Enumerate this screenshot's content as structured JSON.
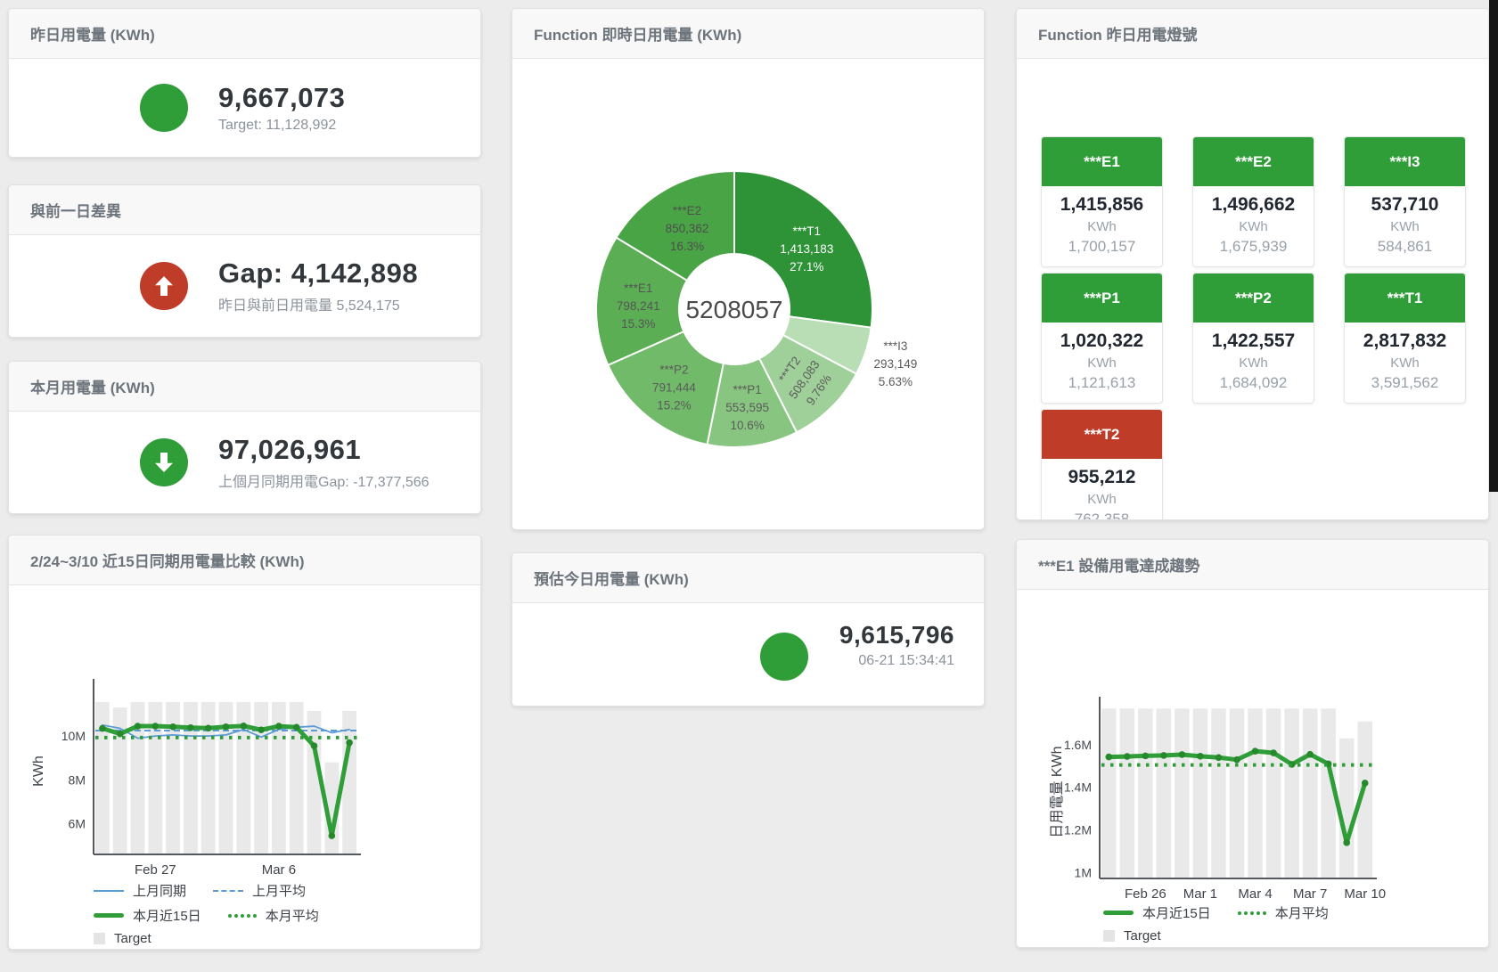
{
  "colors": {
    "green": "#2f9e38",
    "red": "#bf3c28",
    "blue": "#5b9cd6",
    "target_bar": "#e9e9e9",
    "axis": "#55595e",
    "marker_green": "#268a2c"
  },
  "cards": {
    "yesterday": {
      "title": "昨日用電量 (KWh)",
      "value": "9,667,073",
      "subtitle": "Target: 11,128,992",
      "indicator": "circle",
      "indicator_color": "#2f9e38"
    },
    "gap": {
      "title": "與前一日差異",
      "value": "Gap: 4,142,898",
      "subtitle": "昨日與前日用電量 5,524,175",
      "indicator": "arrow-up",
      "indicator_color": "#bf3c28"
    },
    "month": {
      "title": "本月用電量 (KWh)",
      "value": "97,026,961",
      "subtitle": "上個月同期用電Gap: -17,377,566",
      "indicator": "arrow-down",
      "indicator_color": "#2f9e38"
    },
    "estimate": {
      "title": "預估今日用電量 (KWh)",
      "value": "9,615,796",
      "subtitle": "06-21 15:34:41",
      "indicator": "circle",
      "indicator_color": "#2f9e38"
    }
  },
  "lights_card": {
    "title": "Function 昨日用電燈號",
    "tiles": [
      {
        "name": "***E1",
        "value": "1,415,856",
        "unit": "KWh",
        "sub": "1,700,157",
        "status": "green"
      },
      {
        "name": "***E2",
        "value": "1,496,662",
        "unit": "KWh",
        "sub": "1,675,939",
        "status": "green"
      },
      {
        "name": "***I3",
        "value": "537,710",
        "unit": "KWh",
        "sub": "584,861",
        "status": "green"
      },
      {
        "name": "***P1",
        "value": "1,020,322",
        "unit": "KWh",
        "sub": "1,121,613",
        "status": "green"
      },
      {
        "name": "***P2",
        "value": "1,422,557",
        "unit": "KWh",
        "sub": "1,684,092",
        "status": "green"
      },
      {
        "name": "***T1",
        "value": "2,817,832",
        "unit": "KWh",
        "sub": "3,591,562",
        "status": "green"
      },
      {
        "name": "***T2",
        "value": "955,212",
        "unit": "KWh",
        "sub": "762,358",
        "status": "red"
      }
    ]
  },
  "chart_data": [
    {
      "id": "realtime_donut",
      "type": "pie",
      "title": "Function 即時日用電量 (KWh)",
      "center_total": "5208057",
      "slices": [
        {
          "name": "***T1",
          "value": 1413183,
          "value_label": "1,413,183",
          "pct": 27.1,
          "pct_label": "27.1%",
          "color": "#2d9336",
          "label_color": "#ffffff"
        },
        {
          "name": "***I3",
          "value": 293149,
          "value_label": "293,149",
          "pct": 5.63,
          "pct_label": "5.63%",
          "color": "#b9ddb4",
          "label_color": "#5b5b5b",
          "label_outside": true
        },
        {
          "name": "***T2",
          "value": 508083,
          "value_label": "508,083",
          "pct": 9.76,
          "pct_label": "9.76%",
          "color": "#a0d09a",
          "label_color": "#5b5b5b",
          "label_rotate": -55
        },
        {
          "name": "***P1",
          "value": 553595,
          "value_label": "553,595",
          "pct": 10.6,
          "pct_label": "10.6%",
          "color": "#88c580",
          "label_color": "#5b5b5b"
        },
        {
          "name": "***P2",
          "value": 791444,
          "value_label": "791,444",
          "pct": 15.2,
          "pct_label": "15.2%",
          "color": "#71ba69",
          "label_color": "#5b5b5b"
        },
        {
          "name": "***E1",
          "value": 798241,
          "value_label": "798,241",
          "pct": 15.3,
          "pct_label": "15.3%",
          "color": "#5cae55",
          "label_color": "#555555"
        },
        {
          "name": "***E2",
          "value": 850362,
          "value_label": "850,362",
          "pct": 16.3,
          "pct_label": "16.3%",
          "color": "#49a445",
          "label_color": "#4f4f4f"
        }
      ]
    },
    {
      "id": "compare15",
      "type": "line",
      "title": "2/24~3/10 近15日同期用電量比較 (KWh)",
      "ylabel": "KWh",
      "unit": "M KWh",
      "ylim": [
        4.6,
        12.2
      ],
      "yticks": [
        {
          "v": 6,
          "label": "6M"
        },
        {
          "v": 8,
          "label": "8M"
        },
        {
          "v": 10,
          "label": "10M"
        }
      ],
      "xticks": [
        {
          "i": 3,
          "label": "Feb 27"
        },
        {
          "i": 10,
          "label": "Mar 6"
        }
      ],
      "categories": [
        "2/24",
        "2/25",
        "2/26",
        "2/27",
        "2/28",
        "3/1",
        "3/2",
        "3/3",
        "3/4",
        "3/5",
        "3/6",
        "3/7",
        "3/8",
        "3/9",
        "3/10"
      ],
      "target_name": "Target",
      "target_m": [
        11.55,
        11.3,
        11.55,
        11.55,
        11.55,
        11.55,
        11.55,
        11.55,
        11.55,
        11.55,
        11.55,
        11.55,
        11.15,
        8.8,
        11.15
      ],
      "series": [
        {
          "name": "上月同期",
          "style": "line",
          "color": "#5b9cd6",
          "width": 1.8,
          "values_m": [
            10.5,
            10.35,
            9.9,
            10.0,
            10.05,
            10.0,
            10.0,
            10.05,
            10.3,
            9.95,
            10.3,
            10.4,
            10.45,
            10.15,
            10.3
          ]
        },
        {
          "name": "上月平均",
          "style": "dash",
          "color": "#5b9cd6",
          "width": 2,
          "constant_m": 10.25
        },
        {
          "name": "本月近15日",
          "style": "thick",
          "color": "#2f9e38",
          "width": 5,
          "markers": true,
          "values_m": [
            10.35,
            10.1,
            10.45,
            10.45,
            10.42,
            10.38,
            10.36,
            10.42,
            10.46,
            10.28,
            10.45,
            10.4,
            9.55,
            5.45,
            9.7
          ]
        },
        {
          "name": "本月平均",
          "style": "dot",
          "color": "#2f9e38",
          "width": 4,
          "constant_m": 9.93
        }
      ],
      "legend_rows": [
        [
          "上月同期",
          "上月平均"
        ],
        [
          "本月近15日",
          "本月平均"
        ],
        [
          "Target"
        ]
      ]
    },
    {
      "id": "e1_trend",
      "type": "line",
      "title": "***E1 設備用電達成趨勢",
      "ylabel": "日用電量 KWh",
      "unit": "M KWh",
      "ylim": [
        0.972,
        1.784
      ],
      "yticks": [
        {
          "v": 1,
          "label": "1M"
        },
        {
          "v": 1.2,
          "label": "1.2M"
        },
        {
          "v": 1.4,
          "label": "1.4M"
        },
        {
          "v": 1.6,
          "label": "1.6M"
        }
      ],
      "xticks": [
        {
          "i": 2,
          "label": "Feb 26"
        },
        {
          "i": 5,
          "label": "Mar 1"
        },
        {
          "i": 8,
          "label": "Mar 4"
        },
        {
          "i": 11,
          "label": "Mar 7"
        },
        {
          "i": 14,
          "label": "Mar 10"
        }
      ],
      "categories": [
        "2/24",
        "2/25",
        "2/26",
        "2/27",
        "2/28",
        "3/1",
        "3/2",
        "3/3",
        "3/4",
        "3/5",
        "3/6",
        "3/7",
        "3/8",
        "3/9",
        "3/10"
      ],
      "target_name": "Target",
      "target_m": [
        1.77,
        1.77,
        1.77,
        1.77,
        1.77,
        1.77,
        1.77,
        1.77,
        1.77,
        1.77,
        1.77,
        1.77,
        1.77,
        1.63,
        1.71
      ],
      "series": [
        {
          "name": "本月近15日",
          "style": "thick",
          "color": "#2f9e38",
          "width": 5,
          "markers": true,
          "values_m": [
            1.543,
            1.545,
            1.548,
            1.55,
            1.554,
            1.546,
            1.54,
            1.53,
            1.57,
            1.562,
            1.508,
            1.555,
            1.51,
            1.14,
            1.42
          ]
        },
        {
          "name": "本月平均",
          "style": "dot",
          "color": "#2f9e38",
          "width": 4,
          "constant_m": 1.505
        }
      ],
      "legend_rows": [
        [
          "本月近15日",
          "本月平均"
        ],
        [
          "Target"
        ]
      ]
    }
  ]
}
